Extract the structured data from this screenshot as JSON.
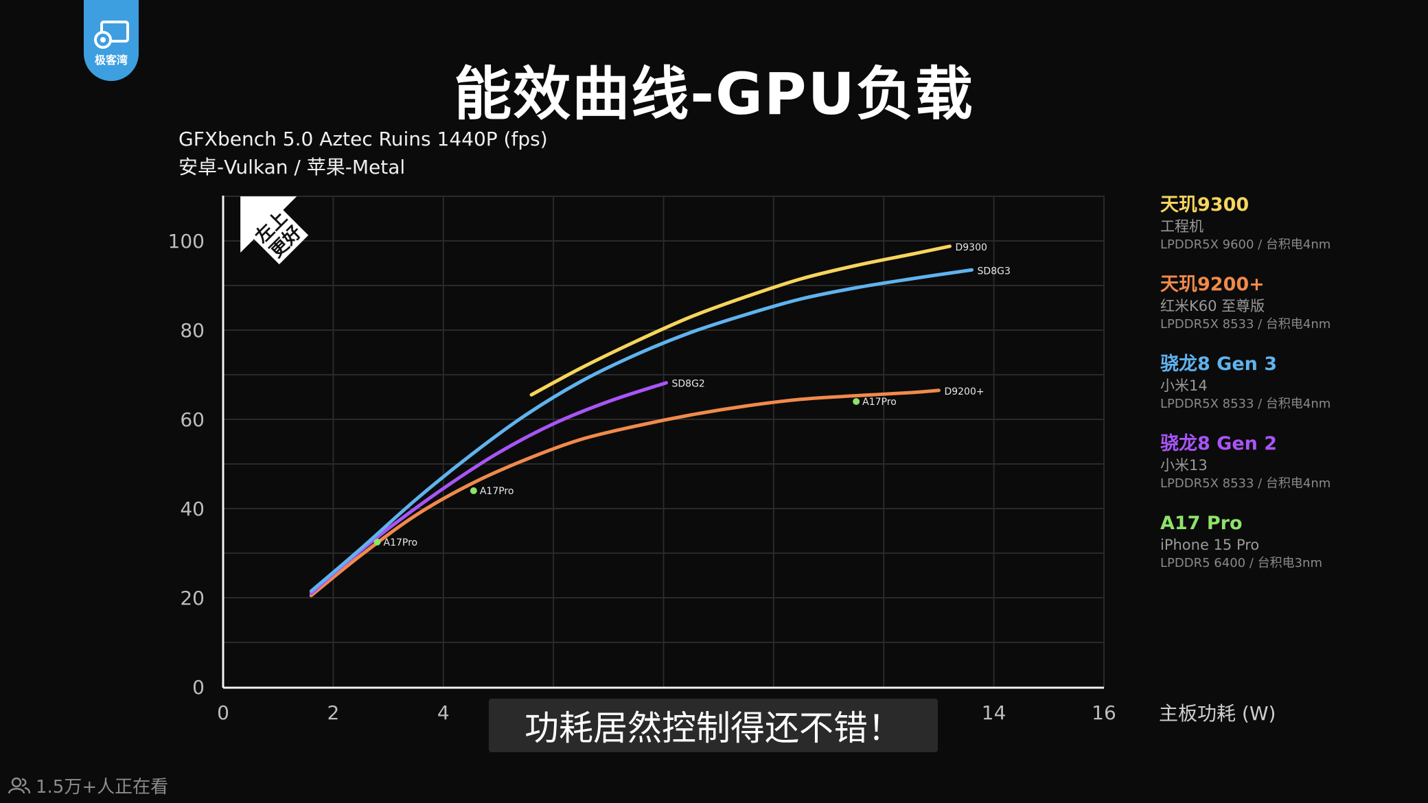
{
  "logo": {
    "text": "极客湾",
    "icon": "gear-chip-icon"
  },
  "subtitle_bar": {
    "text": "功耗居然控制得还不错！"
  },
  "viewers": {
    "icon": "people-icon",
    "text": "1.5万+人正在看"
  },
  "badge": {
    "text_line1": "左上",
    "text_line2": "更好",
    "icon": "arrow-up-left-icon"
  },
  "legend": [
    {
      "name": "天玑9300",
      "device": "工程机",
      "spec": "LPDDR5X 9600 / 台积电4nm",
      "color": "#f6d55c"
    },
    {
      "name": "天玑9200+",
      "device": "红米K60 至尊版",
      "spec": "LPDDR5X 8533 / 台积电4nm",
      "color": "#f08a4b"
    },
    {
      "name": "骁龙8 Gen 3",
      "device": "小米14",
      "spec": "LPDDR5X 8533 / 台积电4nm",
      "color": "#5fb3ee"
    },
    {
      "name": "骁龙8 Gen 2",
      "device": "小米13",
      "spec": "LPDDR5X 8533 / 台积电4nm",
      "color": "#a855f7"
    },
    {
      "name": "A17 Pro",
      "device": "iPhone 15 Pro",
      "spec": "LPDDR5 6400 / 台积电3nm",
      "color": "#8ee36a"
    }
  ],
  "chart_data": {
    "type": "line",
    "title": "能效曲线-GPU负载",
    "subtitle": [
      "GFXbench 5.0 Aztec Ruins 1440P (fps)",
      "安卓-Vulkan / 苹果-Metal"
    ],
    "xlabel": "主板功耗 (W)",
    "ylabel": "",
    "xlim": [
      0,
      16
    ],
    "ylim": [
      0,
      110
    ],
    "xticks": [
      0,
      2,
      4,
      6,
      8,
      10,
      12,
      14,
      16
    ],
    "yticks": [
      0,
      20,
      40,
      60,
      80,
      100
    ],
    "grid": true,
    "series": [
      {
        "name": "D9300",
        "color": "#f6d55c",
        "x": [
          5.6,
          6.5,
          7.5,
          8.5,
          9.5,
          10.5,
          11.5,
          12.5,
          13.2
        ],
        "y": [
          65.5,
          71.5,
          77.5,
          83,
          87.5,
          91.5,
          94.5,
          97,
          98.8
        ]
      },
      {
        "name": "SD8G3",
        "color": "#5fb3ee",
        "x": [
          1.6,
          2.5,
          3.5,
          4.5,
          5.5,
          6.5,
          7.5,
          8.5,
          9.5,
          10.5,
          11.5,
          12.5,
          13.6
        ],
        "y": [
          21.5,
          31,
          42,
          52,
          61,
          68.5,
          74.5,
          79.5,
          83.5,
          87,
          89.5,
          91.5,
          93.5
        ]
      },
      {
        "name": "SD8G2",
        "color": "#a855f7",
        "x": [
          1.6,
          2.2,
          3,
          4,
          5,
          6,
          7,
          8.05
        ],
        "y": [
          21,
          27.5,
          35.5,
          44.5,
          52.5,
          59,
          64,
          68.2
        ]
      },
      {
        "name": "D9200+",
        "color": "#f08a4b",
        "x": [
          1.6,
          2.5,
          3.5,
          4.5,
          5.5,
          6.5,
          7.5,
          8.5,
          9.5,
          10.5,
          11.5,
          12.5,
          13.0
        ],
        "y": [
          20.5,
          29.5,
          38.5,
          45.5,
          51,
          55.5,
          58.5,
          61,
          63,
          64.5,
          65.3,
          66,
          66.5
        ]
      }
    ],
    "points": [
      {
        "name": "A17Pro",
        "x": 2.8,
        "y": 32.5,
        "color": "#8ee36a"
      },
      {
        "name": "A17Pro",
        "x": 4.55,
        "y": 44,
        "color": "#8ee36a"
      },
      {
        "name": "A17Pro",
        "x": 11.5,
        "y": 64,
        "color": "#8ee36a"
      }
    ]
  }
}
